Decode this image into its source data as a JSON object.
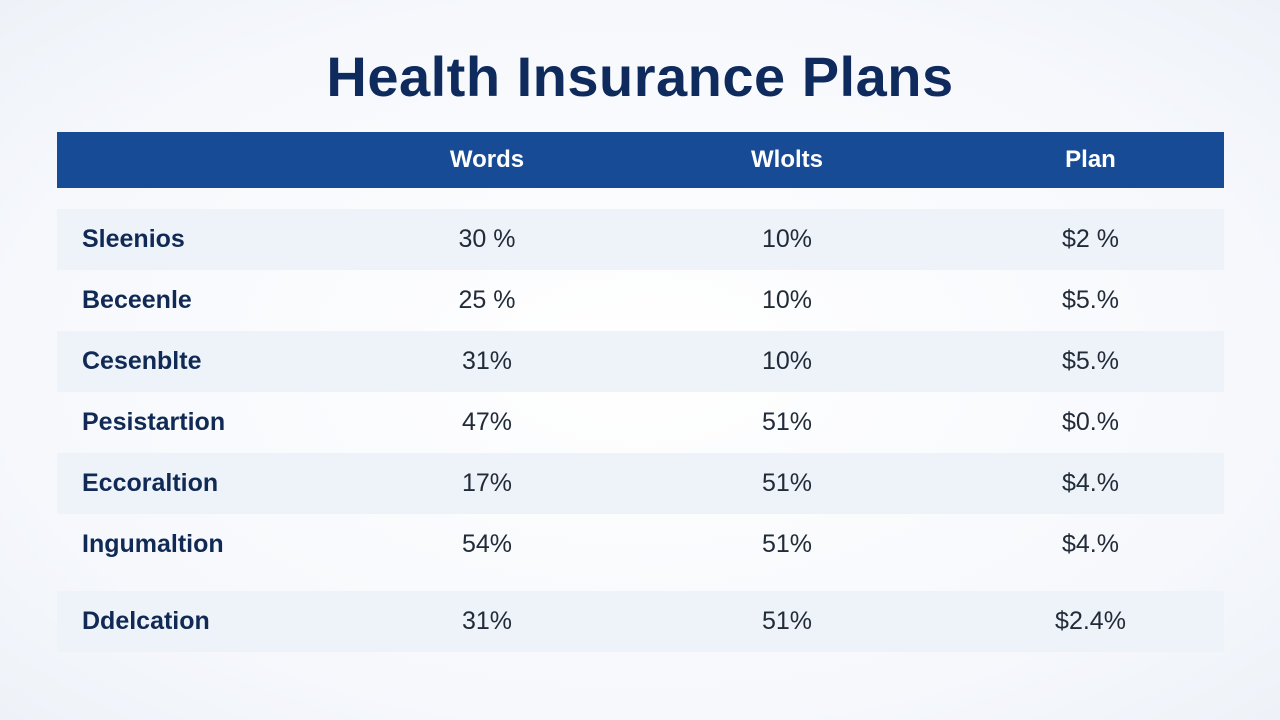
{
  "title": "Health Insurance Plans",
  "table": {
    "headers": [
      "",
      "Words",
      "Wlolts",
      "Plan"
    ],
    "rows": [
      {
        "label": "Sleenios",
        "a": "30 %",
        "b": "10%",
        "c": "$2 %"
      },
      {
        "label": "Beceenle",
        "a": "25 %",
        "b": "10%",
        "c": "$5.%"
      },
      {
        "label": "Cesenblte",
        "a": "31%",
        "b": "10%",
        "c": "$5.%"
      },
      {
        "label": "Pesistartion",
        "a": "47%",
        "b": "51%",
        "c": "$0.%"
      },
      {
        "label": "Eccoraltion",
        "a": "17%",
        "b": "51%",
        "c": "$4.%"
      },
      {
        "label": "Ingumaltion",
        "a": "54%",
        "b": "51%",
        "c": "$4.%"
      },
      {
        "label": "Ddelcation",
        "a": "31%",
        "b": "51%",
        "c": "$2.4%"
      }
    ]
  },
  "colors": {
    "header_bg": "#174b96",
    "title": "#0f2a5c",
    "row_shade": "#eef3fa"
  }
}
